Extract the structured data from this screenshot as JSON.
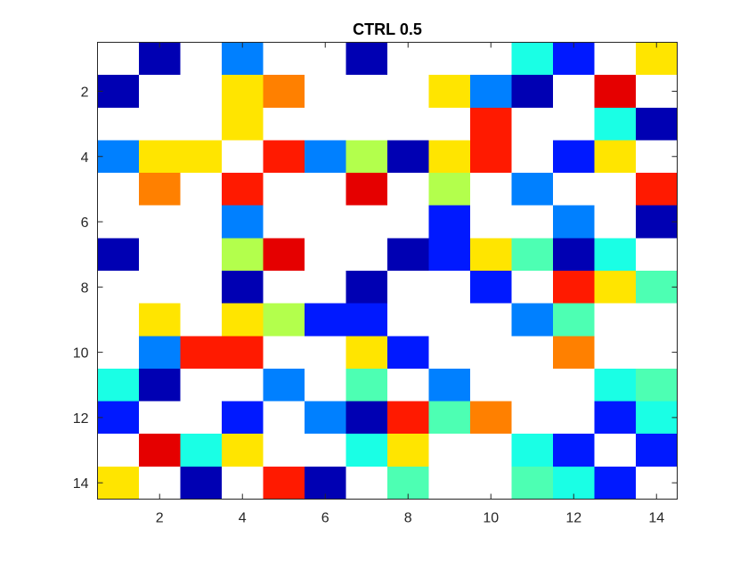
{
  "chart_data": {
    "type": "heatmap",
    "title": "CTRL 0.5",
    "xlabel": "",
    "ylabel": "",
    "rows": 14,
    "cols": 14,
    "xlim": [
      0.5,
      14.5
    ],
    "ylim": [
      0.5,
      14.5
    ],
    "y_reversed": true,
    "grid": false,
    "x_ticks": [
      2,
      4,
      6,
      8,
      10,
      12,
      14
    ],
    "y_ticks": [
      2,
      4,
      6,
      8,
      10,
      12,
      14
    ],
    "colormap": "jet",
    "color_range": [
      0,
      1
    ],
    "blank_color": "#ffffff",
    "values": [
      [
        null,
        0.05,
        null,
        0.25,
        null,
        null,
        0.05,
        null,
        null,
        null,
        0.4,
        0.15,
        null,
        0.65
      ],
      [
        0.05,
        null,
        null,
        0.65,
        0.75,
        null,
        null,
        null,
        0.65,
        0.25,
        0.05,
        null,
        0.9,
        null
      ],
      [
        null,
        null,
        null,
        0.65,
        null,
        null,
        null,
        null,
        null,
        0.85,
        null,
        null,
        0.4,
        0.05
      ],
      [
        0.25,
        0.65,
        0.65,
        null,
        0.85,
        0.25,
        0.55,
        0.05,
        0.65,
        0.85,
        null,
        0.15,
        0.65,
        null
      ],
      [
        null,
        0.75,
        null,
        0.85,
        null,
        null,
        0.9,
        null,
        0.55,
        null,
        0.25,
        null,
        null,
        0.85
      ],
      [
        null,
        null,
        null,
        0.25,
        null,
        null,
        null,
        null,
        0.15,
        null,
        null,
        0.25,
        null,
        0.05
      ],
      [
        0.05,
        null,
        null,
        0.55,
        0.9,
        null,
        null,
        0.05,
        0.15,
        0.65,
        0.45,
        0.05,
        0.4,
        null
      ],
      [
        null,
        null,
        null,
        0.05,
        null,
        null,
        0.05,
        null,
        null,
        0.15,
        null,
        0.85,
        0.65,
        0.45
      ],
      [
        null,
        0.65,
        null,
        0.65,
        0.55,
        0.15,
        0.15,
        null,
        null,
        null,
        0.25,
        0.45,
        null,
        null
      ],
      [
        null,
        0.25,
        0.85,
        0.85,
        null,
        null,
        0.65,
        0.15,
        null,
        null,
        null,
        0.75,
        null,
        null
      ],
      [
        0.4,
        0.05,
        null,
        null,
        0.25,
        null,
        0.45,
        null,
        0.25,
        null,
        null,
        null,
        0.4,
        0.45
      ],
      [
        0.15,
        null,
        null,
        0.15,
        null,
        0.25,
        0.05,
        0.85,
        0.45,
        0.75,
        null,
        null,
        0.15,
        0.4
      ],
      [
        null,
        0.9,
        0.4,
        0.65,
        null,
        null,
        0.4,
        0.65,
        null,
        null,
        0.4,
        0.15,
        null,
        0.15
      ],
      [
        0.65,
        null,
        0.05,
        null,
        0.85,
        0.05,
        null,
        0.45,
        null,
        null,
        0.45,
        0.4,
        0.15,
        null
      ]
    ]
  }
}
